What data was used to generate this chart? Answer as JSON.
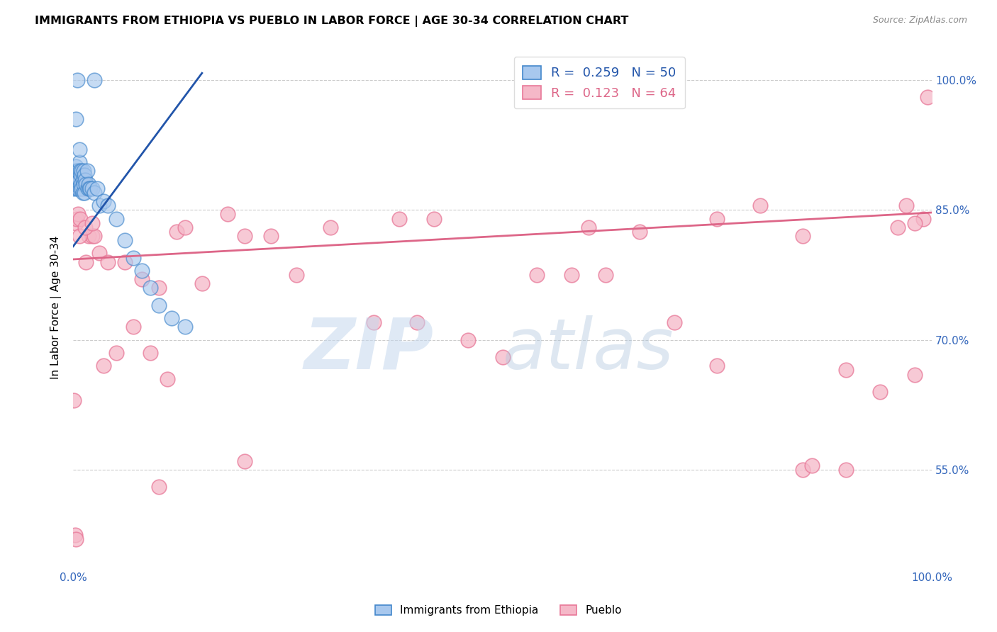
{
  "title": "IMMIGRANTS FROM ETHIOPIA VS PUEBLO IN LABOR FORCE | AGE 30-34 CORRELATION CHART",
  "source": "Source: ZipAtlas.com",
  "ylabel": "In Labor Force | Age 30-34",
  "xlim": [
    0.0,
    1.0
  ],
  "ylim": [
    0.435,
    1.04
  ],
  "ytick_positions": [
    0.55,
    0.7,
    0.85,
    1.0
  ],
  "ytick_labels": [
    "55.0%",
    "70.0%",
    "85.0%",
    "100.0%"
  ],
  "legend_blue_r": "0.259",
  "legend_blue_n": "50",
  "legend_pink_r": "0.123",
  "legend_pink_n": "64",
  "legend_labels": [
    "Immigrants from Ethiopia",
    "Pueblo"
  ],
  "blue_color": "#a8c8ee",
  "pink_color": "#f5b8c8",
  "blue_edge_color": "#4488cc",
  "pink_edge_color": "#e87898",
  "blue_line_color": "#2255aa",
  "pink_line_color": "#dd6688",
  "blue_scatter_x": [
    0.001,
    0.002,
    0.002,
    0.003,
    0.003,
    0.004,
    0.004,
    0.005,
    0.005,
    0.006,
    0.006,
    0.007,
    0.007,
    0.008,
    0.008,
    0.009,
    0.009,
    0.01,
    0.01,
    0.011,
    0.011,
    0.012,
    0.012,
    0.013,
    0.013,
    0.014,
    0.015,
    0.016,
    0.017,
    0.018,
    0.019,
    0.02,
    0.022,
    0.025,
    0.028,
    0.03,
    0.035,
    0.04,
    0.05,
    0.06,
    0.07,
    0.08,
    0.09,
    0.1,
    0.115,
    0.13,
    0.025,
    0.005,
    0.003,
    0.007
  ],
  "blue_scatter_y": [
    0.875,
    0.88,
    0.895,
    0.885,
    0.9,
    0.89,
    0.875,
    0.895,
    0.885,
    0.895,
    0.875,
    0.905,
    0.885,
    0.895,
    0.875,
    0.89,
    0.88,
    0.895,
    0.875,
    0.885,
    0.87,
    0.895,
    0.88,
    0.89,
    0.87,
    0.885,
    0.88,
    0.895,
    0.875,
    0.88,
    0.875,
    0.875,
    0.875,
    0.87,
    0.875,
    0.855,
    0.86,
    0.855,
    0.84,
    0.815,
    0.795,
    0.78,
    0.76,
    0.74,
    0.725,
    0.715,
    1.0,
    1.0,
    0.955,
    0.92
  ],
  "pink_scatter_x": [
    0.001,
    0.002,
    0.003,
    0.004,
    0.005,
    0.006,
    0.008,
    0.01,
    0.012,
    0.015,
    0.018,
    0.022,
    0.025,
    0.03,
    0.035,
    0.04,
    0.05,
    0.06,
    0.07,
    0.08,
    0.09,
    0.1,
    0.11,
    0.12,
    0.13,
    0.15,
    0.18,
    0.2,
    0.23,
    0.26,
    0.3,
    0.35,
    0.38,
    0.42,
    0.46,
    0.5,
    0.54,
    0.58,
    0.62,
    0.66,
    0.7,
    0.75,
    0.8,
    0.85,
    0.9,
    0.94,
    0.97,
    0.99,
    0.995,
    0.003,
    0.007,
    0.014,
    0.022,
    0.1,
    0.2,
    0.4,
    0.6,
    0.85,
    0.86,
    0.9,
    0.96,
    0.98,
    0.75,
    0.98
  ],
  "pink_scatter_y": [
    0.63,
    0.475,
    0.835,
    0.84,
    0.88,
    0.845,
    0.84,
    0.88,
    0.875,
    0.79,
    0.82,
    0.82,
    0.82,
    0.8,
    0.67,
    0.79,
    0.685,
    0.79,
    0.715,
    0.77,
    0.685,
    0.76,
    0.655,
    0.825,
    0.83,
    0.765,
    0.845,
    0.82,
    0.82,
    0.775,
    0.83,
    0.72,
    0.84,
    0.84,
    0.7,
    0.68,
    0.775,
    0.775,
    0.775,
    0.825,
    0.72,
    0.84,
    0.855,
    0.82,
    0.665,
    0.64,
    0.855,
    0.84,
    0.98,
    0.47,
    0.82,
    0.83,
    0.835,
    0.53,
    0.56,
    0.72,
    0.83,
    0.55,
    0.555,
    0.55,
    0.83,
    0.835,
    0.67,
    0.66
  ],
  "blue_trend_x": [
    0.0,
    0.15
  ],
  "blue_trend_y": [
    0.808,
    1.008
  ],
  "pink_trend_x": [
    0.0,
    1.0
  ],
  "pink_trend_y": [
    0.793,
    0.847
  ]
}
